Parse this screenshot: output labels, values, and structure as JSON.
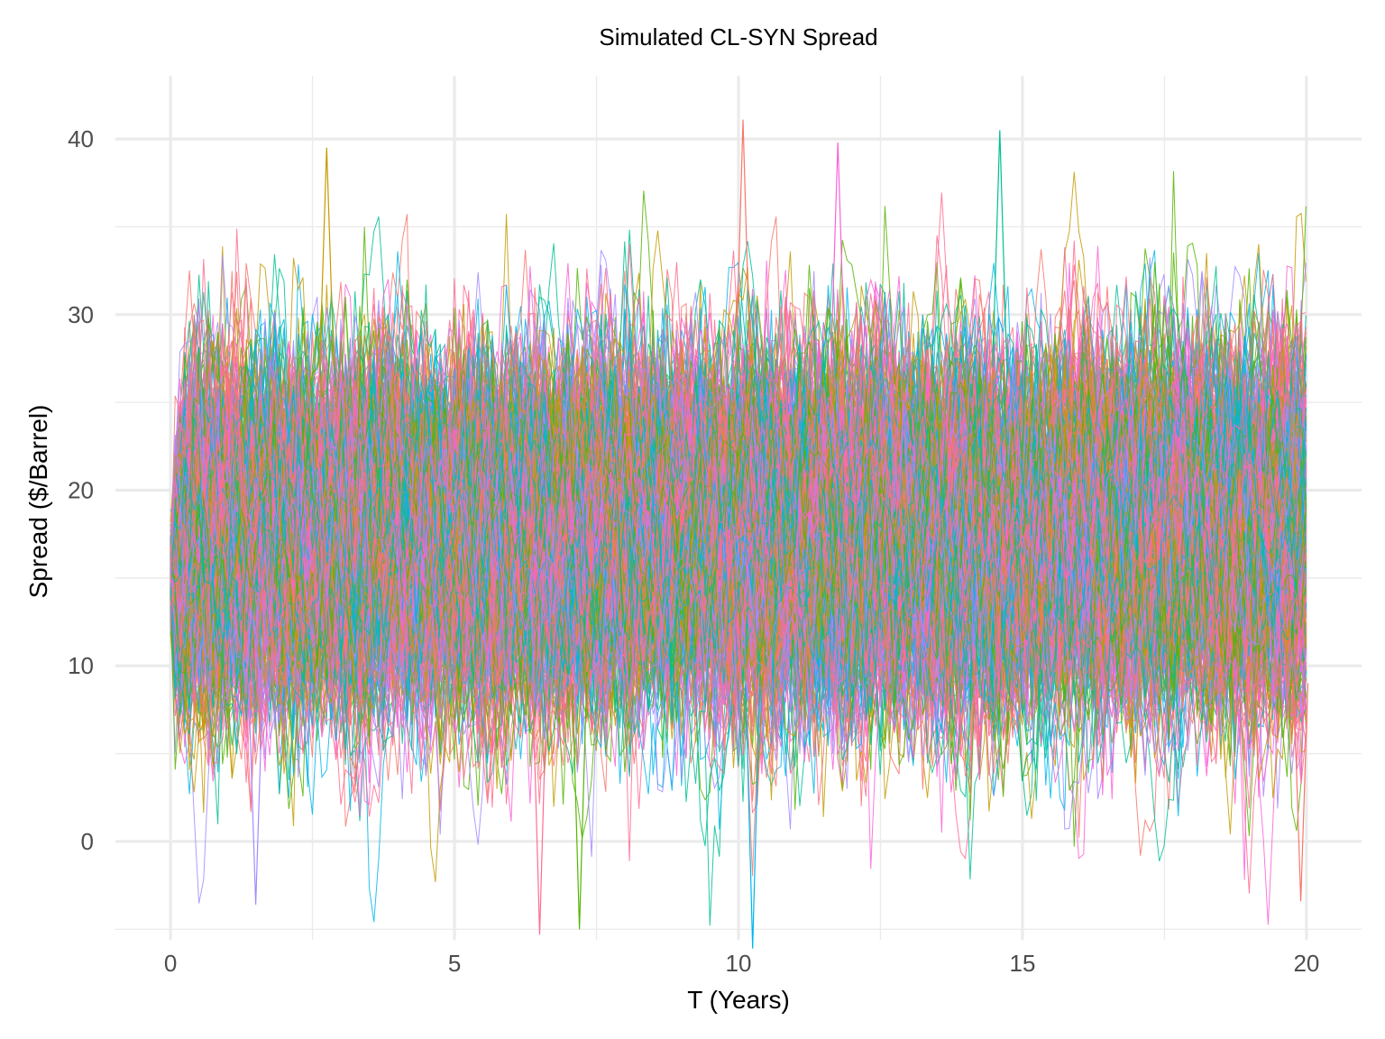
{
  "chart_data": {
    "type": "line",
    "title": "Simulated CL-SYN Spread",
    "xlabel": "T (Years)",
    "ylabel": "Spread ($/Barrel)",
    "xlim": [
      -0.97,
      20.97
    ],
    "ylim": [
      -5.6,
      43.6
    ],
    "x_ticks": [
      0,
      5,
      10,
      15,
      20
    ],
    "x_tick_labels": [
      "0",
      "5",
      "10",
      "15",
      "20"
    ],
    "y_ticks": [
      0,
      10,
      20,
      30,
      40
    ],
    "y_tick_labels": [
      "0",
      "10",
      "20",
      "30",
      "40"
    ],
    "x_range": [
      0,
      20
    ],
    "time_step": 0.0833,
    "grid": true,
    "legend": "none",
    "series_count_approx": 1000,
    "series_palette": [
      "#F8766D",
      "#C49A00",
      "#53B400",
      "#00C094",
      "#00B6EB",
      "#A58AFF",
      "#FB61D7",
      "#FF6C91"
    ],
    "spread_statistics": {
      "start_value": 15,
      "mean_level": 17.5,
      "typical_band": [
        8,
        27
      ],
      "observed_max": 41.1,
      "observed_min": -6.1
    },
    "extremes": [
      {
        "x": 10.08,
        "y": 41.1
      },
      {
        "x": 14.6,
        "y": 40.5
      },
      {
        "x": 11.75,
        "y": 39.8
      },
      {
        "x": 2.75,
        "y": 39.5
      },
      {
        "x": 10.25,
        "y": -6.1
      },
      {
        "x": 6.5,
        "y": -5.3
      },
      {
        "x": 7.2,
        "y": -5.0
      },
      {
        "x": 1.5,
        "y": -3.6
      },
      {
        "x": 19.9,
        "y": -3.4
      }
    ]
  }
}
